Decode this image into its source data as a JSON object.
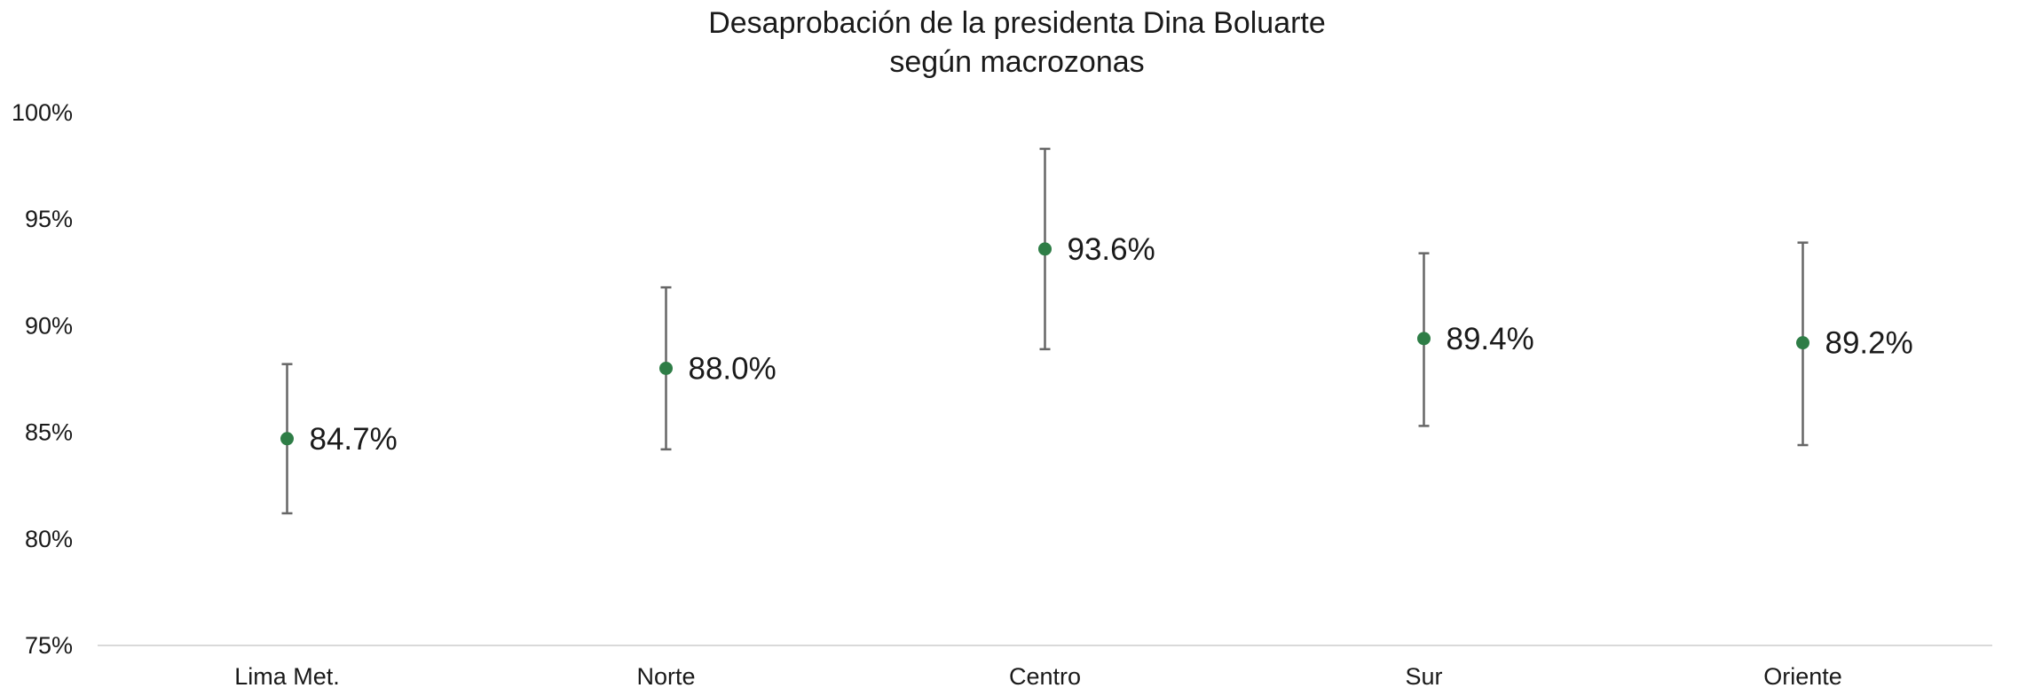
{
  "chart_data": {
    "type": "scatter",
    "title_line1": "Desaprobación de la presidenta Dina Boluarte",
    "title_line2": "según macrozonas",
    "categories": [
      "Lima Met.",
      "Norte",
      "Centro",
      "Sur",
      "Oriente"
    ],
    "values": [
      84.7,
      88.0,
      93.6,
      89.4,
      89.2
    ],
    "data_labels": [
      "84.7%",
      "88.0%",
      "93.6%",
      "89.4%",
      "89.2%"
    ],
    "error_low": [
      81.2,
      84.2,
      88.9,
      85.3,
      84.4
    ],
    "error_high": [
      88.2,
      91.8,
      98.3,
      93.4,
      93.9
    ],
    "ylim": [
      75,
      100
    ],
    "yticks": [
      75,
      80,
      85,
      90,
      95,
      100
    ],
    "ytick_labels": [
      "75%",
      "80%",
      "85%",
      "90%",
      "95%",
      "100%"
    ],
    "xlabel": "",
    "ylabel": "",
    "grid": false,
    "legend": "none",
    "marker_color": "#2e7d46",
    "errorbar_color": "#666666"
  }
}
